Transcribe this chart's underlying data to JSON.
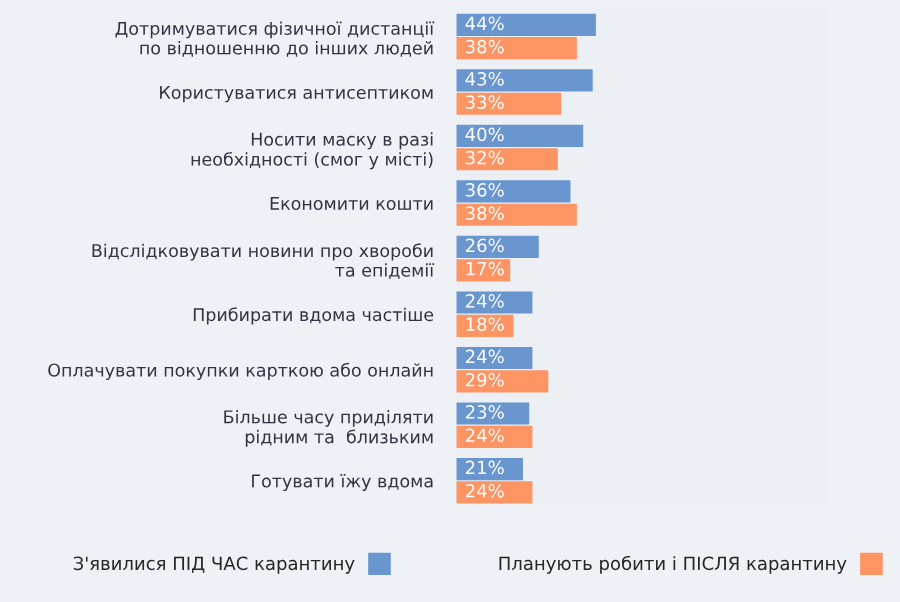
{
  "chart_data": {
    "type": "bar",
    "orientation": "horizontal",
    "categories": [
      "Дотримуватися фізичної дистанції\nпо відношенню до інших людей",
      "Користуватися антисептиком",
      "Носити маску в разі\nнеобхідності (смог у місті)",
      "Економити кошти",
      "Відслідковувати новини про хвороби\nта епідемії",
      "Прибирати вдома частіше",
      "Оплачувати покупки карткою або онлайн",
      "Більше часу приділяти\nрідним та  близьким",
      "Готувати їжу вдома"
    ],
    "series": [
      {
        "name": "З'явилися ПІД ЧАС карантину",
        "color": "#6a96d0",
        "values": [
          44,
          43,
          40,
          36,
          26,
          24,
          24,
          23,
          21
        ],
        "value_labels": [
          "44%",
          "43%",
          "40%",
          "36%",
          "26%",
          "24%",
          "24%",
          "23%",
          "21%"
        ]
      },
      {
        "name": "Планують робити і ПІСЛЯ карантину",
        "color": "#fc9464",
        "values": [
          38,
          33,
          32,
          38,
          17,
          18,
          29,
          24,
          24
        ],
        "value_labels": [
          "38%",
          "33%",
          "32%",
          "38%",
          "17%",
          "18%",
          "29%",
          "24%",
          "24%"
        ]
      }
    ],
    "tick_labels": "y",
    "grid": false,
    "legend": "bottom"
  }
}
